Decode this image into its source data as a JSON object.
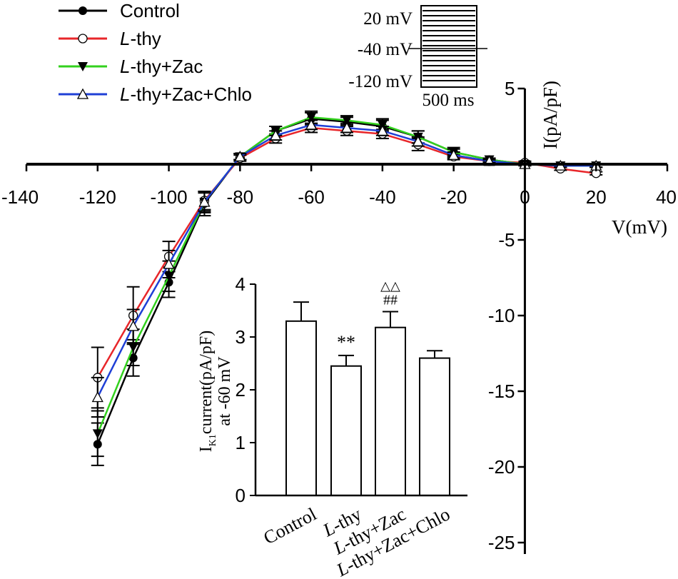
{
  "chart_data": [
    {
      "type": "line",
      "xlabel": "V(mV)",
      "ylabel": "I(pA/pF)",
      "xlim": [
        -140,
        40
      ],
      "ylim": [
        -25,
        5
      ],
      "xticks": [
        -140,
        -120,
        -100,
        -80,
        -60,
        -40,
        -20,
        0,
        20,
        40
      ],
      "yticks": [
        5,
        -5,
        -10,
        -15,
        -20,
        -25
      ],
      "x": [
        -120,
        -110,
        -100,
        -90,
        -80,
        -70,
        -60,
        -50,
        -40,
        -30,
        -20,
        -10,
        0,
        10,
        20
      ],
      "legend_placement": "top-left",
      "series": [
        {
          "name": "Control",
          "color": "#000000",
          "marker": "filled-circle",
          "values": [
            -18.5,
            -12.8,
            -7.8,
            -2.6,
            0.5,
            2.2,
            3.0,
            2.8,
            2.5,
            1.8,
            0.8,
            0.3,
            0.0,
            -0.1,
            -0.1
          ],
          "errors": [
            1.4,
            1.2,
            1.0,
            0.8,
            0.2,
            0.3,
            0.4,
            0.3,
            0.4,
            0.4,
            0.3,
            0.1,
            0.1,
            0.1,
            0.1
          ]
        },
        {
          "name": "L-thy",
          "color": "#e8262a",
          "marker": "open-circle",
          "values": [
            -14.1,
            -10.0,
            -6.1,
            -2.4,
            0.4,
            1.7,
            2.4,
            2.2,
            2.0,
            1.3,
            0.5,
            0.2,
            0.1,
            -0.3,
            -0.6
          ],
          "errors": [
            2.0,
            1.9,
            1.0,
            0.6,
            0.2,
            0.3,
            0.3,
            0.3,
            0.3,
            0.4,
            0.2,
            0.1,
            0.1,
            0.1,
            0.1
          ]
        },
        {
          "name": "L-thy+Zac",
          "color": "#33d11e",
          "marker": "filled-triangle-down",
          "values": [
            -17.8,
            -12.1,
            -7.4,
            -2.5,
            0.5,
            2.2,
            3.1,
            2.9,
            2.6,
            1.8,
            0.8,
            0.3,
            0.0,
            -0.1,
            -0.1
          ],
          "errors": [
            1.5,
            1.2,
            1.0,
            0.7,
            0.2,
            0.3,
            0.4,
            0.3,
            0.4,
            0.4,
            0.2,
            0.1,
            0.1,
            0.1,
            0.1
          ]
        },
        {
          "name": "L-thy+Zac+Chlo",
          "color": "#1f3fd6",
          "marker": "open-triangle-up",
          "values": [
            -15.4,
            -10.7,
            -6.6,
            -2.5,
            0.5,
            1.9,
            2.6,
            2.4,
            2.2,
            1.5,
            0.6,
            0.2,
            0.0,
            -0.1,
            -0.1
          ],
          "errors": [
            1.3,
            1.1,
            0.9,
            0.6,
            0.2,
            0.3,
            0.3,
            0.3,
            0.3,
            0.3,
            0.2,
            0.1,
            0.1,
            0.1,
            0.1
          ]
        }
      ]
    },
    {
      "type": "bar",
      "ylabel_main": "I",
      "ylabel_sub": "K1",
      "ylabel_rest": "current(pA/pF)",
      "ylabel_line2": "at -60 mV",
      "ylim": [
        0,
        4
      ],
      "yticks": [
        0,
        1,
        2,
        3,
        4
      ],
      "legend_placement": "none",
      "categories": [
        "Control",
        "L-thy",
        "L-thy+Zac",
        "L-thy+Zac+Chlo"
      ],
      "values": [
        3.3,
        2.45,
        3.18,
        2.6
      ],
      "errors": [
        0.36,
        0.2,
        0.3,
        0.14
      ],
      "annotations": [
        "",
        "**",
        "##",
        ""
      ],
      "annotations_top": [
        "",
        "",
        "△△",
        ""
      ]
    }
  ],
  "protocol_inset": {
    "labels": [
      "20 mV",
      "-40 mV",
      "-120 mV"
    ],
    "time_label": "500 ms"
  }
}
